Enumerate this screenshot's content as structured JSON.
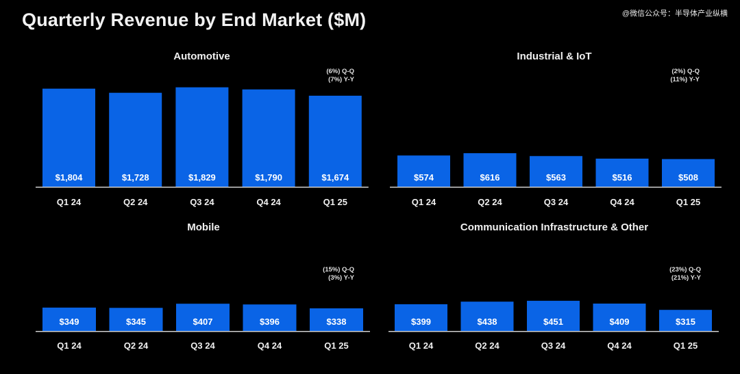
{
  "page": {
    "title": "Quarterly Revenue by End Market ($M)",
    "watermark": "@微信公众号：半导体产业纵横"
  },
  "colors": {
    "background": "#000000",
    "bar": "#0a64e6",
    "text": "#ffffff"
  },
  "chart_data": [
    {
      "type": "bar",
      "title": "Automotive",
      "categories": [
        "Q1 24",
        "Q2 24",
        "Q3 24",
        "Q4 24",
        "Q1 25"
      ],
      "values": [
        1804,
        1728,
        1829,
        1790,
        1674
      ],
      "value_labels": [
        "$1,804",
        "$1,728",
        "$1,829",
        "$1,790",
        "$1,674"
      ],
      "ylim": [
        0,
        1850
      ],
      "unit": "$M",
      "change_qq": "(6%) Q-Q",
      "change_yy": "(7%) Y-Y"
    },
    {
      "type": "bar",
      "title": "Industrial & IoT",
      "categories": [
        "Q1 24",
        "Q2 24",
        "Q3 24",
        "Q4 24",
        "Q1 25"
      ],
      "values": [
        574,
        616,
        563,
        516,
        508
      ],
      "value_labels": [
        "$574",
        "$616",
        "$563",
        "$516",
        "$508"
      ],
      "ylim": [
        0,
        1850
      ],
      "unit": "$M",
      "change_qq": "(2%) Q-Q",
      "change_yy": "(11%) Y-Y"
    },
    {
      "type": "bar",
      "title": "Mobile",
      "categories": [
        "Q1 24",
        "Q2 24",
        "Q3 24",
        "Q4 24",
        "Q1 25"
      ],
      "values": [
        349,
        345,
        407,
        396,
        338
      ],
      "value_labels": [
        "$349",
        "$345",
        "$407",
        "$396",
        "$338"
      ],
      "ylim": [
        0,
        450
      ],
      "unit": "$M",
      "change_qq": "(15%) Q-Q",
      "change_yy": "(3%) Y-Y"
    },
    {
      "type": "bar",
      "title": "Communication Infrastructure & Other",
      "categories": [
        "Q1 24",
        "Q2 24",
        "Q3 24",
        "Q4 24",
        "Q1 25"
      ],
      "values": [
        399,
        438,
        451,
        409,
        315
      ],
      "value_labels": [
        "$399",
        "$438",
        "$451",
        "$409",
        "$315"
      ],
      "ylim": [
        0,
        450
      ],
      "unit": "$M",
      "change_qq": "(23%) Q-Q",
      "change_yy": "(21%) Y-Y"
    }
  ]
}
